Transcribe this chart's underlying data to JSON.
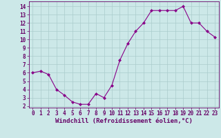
{
  "x": [
    0,
    1,
    2,
    3,
    4,
    5,
    6,
    7,
    8,
    9,
    10,
    11,
    12,
    13,
    14,
    15,
    16,
    17,
    18,
    19,
    20,
    21,
    22,
    23
  ],
  "y": [
    6.0,
    6.2,
    5.8,
    4.0,
    3.3,
    2.5,
    2.2,
    2.2,
    3.5,
    3.0,
    4.5,
    7.5,
    9.5,
    11.0,
    12.0,
    13.5,
    13.5,
    13.5,
    13.5,
    14.0,
    12.0,
    12.0,
    11.0,
    10.3
  ],
  "line_color": "#880088",
  "marker": "D",
  "marker_size": 2,
  "bg_color": "#cce8e8",
  "grid_color": "#aacccc",
  "xlabel": "Windchill (Refroidissement éolien,°C)",
  "xlim": [
    -0.5,
    23.5
  ],
  "ylim": [
    1.8,
    14.6
  ],
  "yticks": [
    2,
    3,
    4,
    5,
    6,
    7,
    8,
    9,
    10,
    11,
    12,
    13,
    14
  ],
  "xticks": [
    0,
    1,
    2,
    3,
    4,
    5,
    6,
    7,
    8,
    9,
    10,
    11,
    12,
    13,
    14,
    15,
    16,
    17,
    18,
    19,
    20,
    21,
    22,
    23
  ],
  "tick_label_size": 5.5,
  "xlabel_size": 6.5,
  "spine_color": "#660066",
  "label_color": "#660066"
}
